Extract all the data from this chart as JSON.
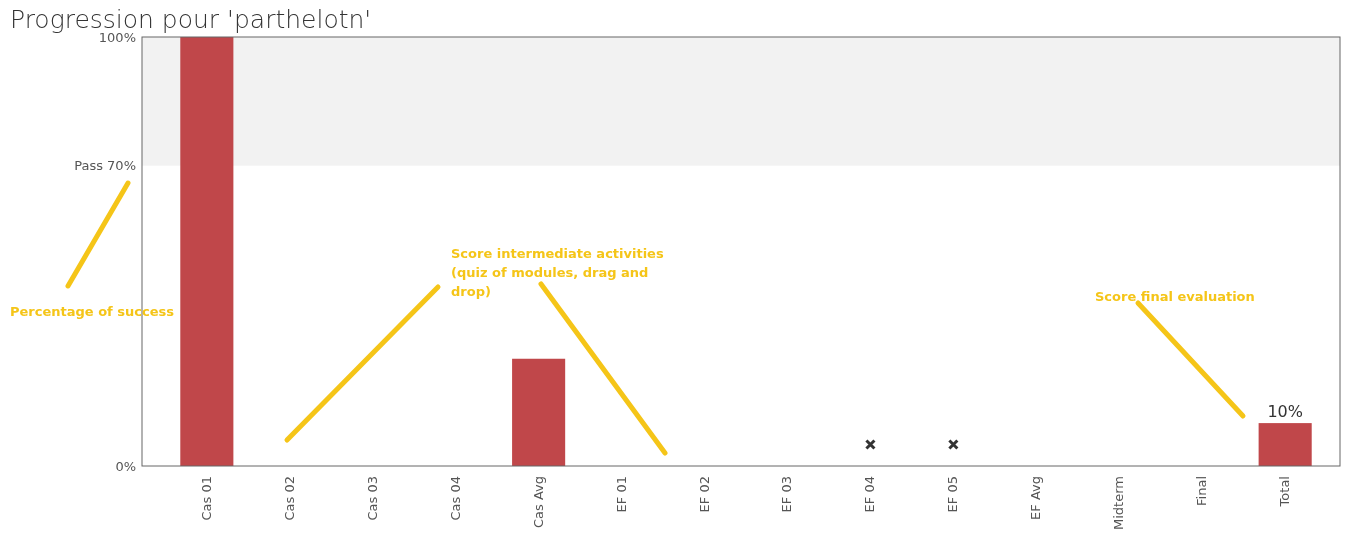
{
  "chart_data": {
    "type": "bar",
    "title": "Progression pour 'parthelotn'",
    "categories": [
      "Cas 01",
      "Cas 02",
      "Cas 03",
      "Cas 04",
      "Cas Avg",
      "EF 01",
      "EF 02",
      "EF 03",
      "EF 04",
      "EF 05",
      "EF Avg",
      "Midterm",
      "Final",
      "Total"
    ],
    "series": [
      {
        "color": "#c0474a",
        "values": [
          100,
          0,
          0,
          0,
          25,
          0,
          0,
          0,
          0,
          0,
          0,
          0,
          0,
          10
        ],
        "value_labels": [
          null,
          null,
          null,
          null,
          null,
          null,
          null,
          null,
          null,
          null,
          null,
          null,
          null,
          "10%"
        ]
      },
      {
        "type": "scatter",
        "color": "#333333",
        "marker": "cross",
        "x": [
          "EF 04",
          "EF 05"
        ],
        "values": [
          5,
          5
        ]
      }
    ],
    "ylim": [
      0,
      100
    ],
    "yticks": [
      {
        "value": 0,
        "label": "0%"
      },
      {
        "value": 70,
        "label": "Pass 70%"
      },
      {
        "value": 100,
        "label": "100%"
      }
    ],
    "bands": [
      {
        "axis": "y",
        "from": 70,
        "to": 100,
        "color": "#f2f2f2"
      }
    ],
    "annotations": [
      "Percentage of success",
      "Score intermediate activities (quiz of modules, drag and drop)",
      "Score final evaluation"
    ]
  }
}
